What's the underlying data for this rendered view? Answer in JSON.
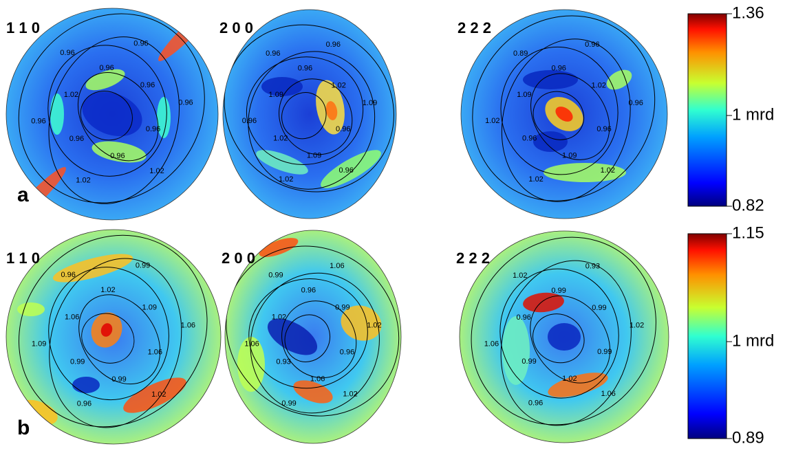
{
  "panels": [
    {
      "label": "a",
      "colorbar": {
        "max": "1.36",
        "mid": "1 mrd",
        "min": "0.82"
      },
      "figures": [
        {
          "title": "1 1 0",
          "contours": [
            "0.96",
            "1.02",
            "0.96",
            "1.02",
            "0.96",
            "0.96",
            "1.02",
            "0.96",
            "0.96",
            "0.96",
            "0.96",
            "0.96"
          ]
        },
        {
          "title": "2 0 0",
          "contours": [
            "0.96",
            "0.96",
            "1.09",
            "1.02",
            "1.02",
            "0.96",
            "1.09",
            "0.96",
            "0.96",
            "0.96",
            "1.02",
            "1.09"
          ]
        },
        {
          "title": "2 2 2",
          "contours": [
            "0.96",
            "1.02",
            "1.09",
            "1.02",
            "0.96",
            "1.02",
            "1.09",
            "0.89",
            "0.96",
            "0.96",
            "1.02",
            "0.96"
          ]
        }
      ]
    },
    {
      "label": "b",
      "colorbar": {
        "max": "1.15",
        "mid": "1 mrd",
        "min": "0.89"
      },
      "figures": [
        {
          "title": "1 1 0",
          "contours": [
            "1.06",
            "1.02",
            "0.99",
            "0.96",
            "0.99",
            "1.09",
            "1.06",
            "0.96",
            "1.02",
            "0.99",
            "1.09",
            "1.06"
          ]
        },
        {
          "title": "2 0 0",
          "contours": [
            "0.96",
            "1.02",
            "1.06",
            "0.99",
            "0.93",
            "1.06",
            "1.02",
            "0.99",
            "0.96",
            "1.06",
            "0.99",
            "1.02"
          ]
        },
        {
          "title": "2 2 2",
          "contours": [
            "0.99",
            "1.06",
            "1.02",
            "0.96",
            "0.99",
            "1.06",
            "0.96",
            "1.02",
            "0.99",
            "0.93",
            "0.99",
            "1.02"
          ]
        }
      ]
    }
  ]
}
